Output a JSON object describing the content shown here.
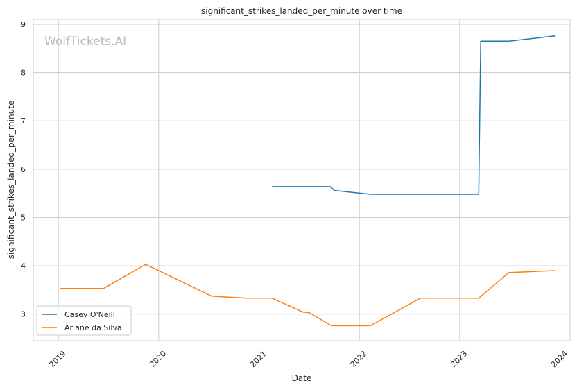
{
  "chart_data": {
    "type": "line",
    "title": "significant_strikes_landed_per_minute over time",
    "xlabel": "Date",
    "ylabel": "significant_strikes_landed_per_minute",
    "watermark": "WolfTickets.AI",
    "xlim": [
      2018.75,
      2024.1
    ],
    "ylim": [
      2.45,
      9.1
    ],
    "x_ticks": [
      2019,
      2020,
      2021,
      2022,
      2023,
      2024
    ],
    "y_ticks": [
      3,
      4,
      5,
      6,
      7,
      8,
      9
    ],
    "grid": true,
    "legend_position": "lower-left",
    "series": [
      {
        "name": "Casey O'Neill",
        "color": "#1f77b4",
        "points": [
          {
            "x": 2021.13,
            "y": 5.64
          },
          {
            "x": 2021.71,
            "y": 5.64
          },
          {
            "x": 2021.75,
            "y": 5.56
          },
          {
            "x": 2022.11,
            "y": 5.48
          },
          {
            "x": 2023.19,
            "y": 5.48
          },
          {
            "x": 2023.21,
            "y": 8.65
          },
          {
            "x": 2023.49,
            "y": 8.65
          },
          {
            "x": 2023.95,
            "y": 8.76
          }
        ]
      },
      {
        "name": "Ariane da Silva",
        "color": "#ff7f0e",
        "points": [
          {
            "x": 2019.02,
            "y": 3.53
          },
          {
            "x": 2019.45,
            "y": 3.53
          },
          {
            "x": 2019.87,
            "y": 4.03
          },
          {
            "x": 2020.53,
            "y": 3.37
          },
          {
            "x": 2020.88,
            "y": 3.33
          },
          {
            "x": 2021.13,
            "y": 3.33
          },
          {
            "x": 2021.44,
            "y": 3.04
          },
          {
            "x": 2021.5,
            "y": 3.03
          },
          {
            "x": 2021.72,
            "y": 2.76
          },
          {
            "x": 2022.11,
            "y": 2.76
          },
          {
            "x": 2022.61,
            "y": 3.33
          },
          {
            "x": 2023.19,
            "y": 3.33
          },
          {
            "x": 2023.49,
            "y": 3.86
          },
          {
            "x": 2023.95,
            "y": 3.9
          }
        ]
      }
    ]
  }
}
